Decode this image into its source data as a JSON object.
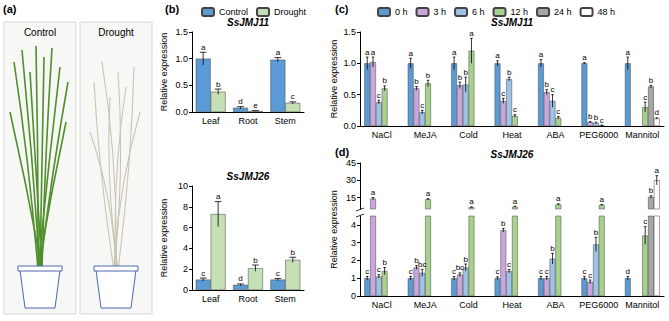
{
  "photos": {
    "panel": "(a)",
    "captions": [
      "Control",
      "Drought"
    ]
  },
  "chart_data": [
    {
      "panel": "(b)",
      "type": "bar",
      "title": "SsJMJ11",
      "y_label": "Relative expression",
      "categories": [
        "Leaf",
        "Root",
        "Stem"
      ],
      "series": [
        {
          "name": "Control",
          "color": "#5b9bd5",
          "values": [
            1.0,
            0.08,
            0.98
          ],
          "errors": [
            0.12,
            0.02,
            0.04
          ],
          "letters": [
            "a",
            "d",
            "a"
          ]
        },
        {
          "name": "Drought",
          "color": "#c5e0b4",
          "values": [
            0.38,
            0.02,
            0.17
          ],
          "errors": [
            0.05,
            0.005,
            0.02
          ],
          "letters": [
            "b",
            "e",
            "c"
          ]
        }
      ],
      "ylim": [
        0,
        1.5
      ],
      "yticks": [
        {
          "value": 0,
          "label": "0.0"
        },
        0.5,
        {
          "value": 1,
          "label": "1.0"
        },
        1.5
      ],
      "grid": false,
      "legend": "top"
    },
    {
      "type": "bar",
      "title": "SsJMJ26",
      "y_label": "Relative expression",
      "categories": [
        "Leaf",
        "Root",
        "Stem"
      ],
      "series": [
        {
          "name": "Control",
          "color": "#5b9bd5",
          "values": [
            1.0,
            0.5,
            1.0
          ],
          "errors": [
            0.15,
            0.08,
            0.1
          ],
          "letters": [
            "c",
            "d",
            "c"
          ]
        },
        {
          "name": "Drought",
          "color": "#c5e0b4",
          "values": [
            7.3,
            2.1,
            2.9
          ],
          "errors": [
            1.2,
            0.3,
            0.25
          ],
          "letters": [
            "a",
            "b",
            "b"
          ]
        }
      ],
      "ylim": [
        0,
        10
      ],
      "yticks": [
        0,
        2,
        4,
        6,
        8,
        10
      ],
      "grid": false
    },
    {
      "panel": "(c)",
      "type": "bar",
      "title": "SsJMJ11",
      "y_label": "Relative expression",
      "categories": [
        "NaCl",
        "MeJA",
        "Cold",
        "Heat",
        "ABA",
        "PEG6000",
        "Mannitol"
      ],
      "series": [
        {
          "name": "0 h",
          "color": "#5b9bd5",
          "values": [
            1,
            1,
            1,
            1,
            1,
            1,
            1
          ],
          "errors": [
            0.1,
            0.08,
            0.1,
            0.04,
            0.06,
            0.01,
            0.1
          ],
          "letters": [
            "a",
            "a",
            "a",
            "a",
            "a",
            "a",
            "a"
          ]
        },
        {
          "name": "3 h",
          "color": "#c9a7dd",
          "values": [
            1.02,
            0.6,
            0.65,
            0.4,
            0.54,
            0.06,
            null
          ],
          "errors": [
            0.08,
            0.03,
            0.05,
            0.04,
            0.04,
            0.01,
            null
          ],
          "letters": [
            "a",
            "b",
            "b",
            "c",
            "b",
            "b",
            null
          ]
        },
        {
          "name": "6 h",
          "color": "#9dc3e6",
          "values": [
            0.38,
            0.22,
            0.66,
            0.75,
            0.4,
            0.05,
            null
          ],
          "errors": [
            0.03,
            0.03,
            0.12,
            0.03,
            0.1,
            0.01,
            null
          ],
          "letters": [
            "c",
            "c",
            "b",
            "b",
            "c",
            "b",
            null
          ]
        },
        {
          "name": "12 h",
          "color": "#a9d18e",
          "values": [
            0.6,
            0.68,
            1.2,
            0.16,
            0.13,
            0.01,
            0.3
          ],
          "errors": [
            0.04,
            0.05,
            0.2,
            0.02,
            0.02,
            0.005,
            0.08
          ],
          "letters": [
            "b",
            "b",
            "a",
            "c",
            "c",
            "c",
            "c"
          ]
        },
        {
          "name": "24 h",
          "color": "#a6a6a6",
          "values": [
            null,
            null,
            null,
            null,
            null,
            null,
            0.63
          ],
          "errors": [
            null,
            null,
            null,
            null,
            null,
            null,
            0.02
          ],
          "letters": [
            null,
            null,
            null,
            null,
            null,
            null,
            "b"
          ]
        },
        {
          "name": "48 h",
          "color": "#ffffff",
          "values": [
            null,
            null,
            null,
            null,
            null,
            null,
            0.12
          ],
          "errors": [
            null,
            null,
            null,
            null,
            null,
            null,
            0.01
          ],
          "letters": [
            null,
            null,
            null,
            null,
            null,
            null,
            "d"
          ]
        }
      ],
      "ylim": [
        0,
        1.5
      ],
      "yticks": [
        {
          "value": 0,
          "label": "0.0"
        },
        0.5,
        {
          "value": 1,
          "label": "1.0"
        },
        1.5
      ],
      "grid": false,
      "legend": "top"
    },
    {
      "panel": "(d)",
      "type": "bar",
      "title": "SsJMJ26",
      "y_label": "Relative expression",
      "categories": [
        "NaCl",
        "MeJA",
        "Cold",
        "Heat",
        "ABA",
        "PEG6000",
        "Mannitol"
      ],
      "series": [
        {
          "name": "0 h",
          "color": "#5b9bd5",
          "values": [
            1,
            1,
            1,
            1,
            1,
            1,
            1
          ],
          "errors": [
            0.1,
            0.1,
            0.1,
            0.08,
            0.1,
            0.1,
            0.1
          ],
          "letters": [
            "c",
            "c",
            "c",
            "c",
            "c",
            "c",
            "d"
          ]
        },
        {
          "name": "3 h",
          "color": "#c9a7dd",
          "values": [
            14,
            1.6,
            1.2,
            3.7,
            1.0,
            0.8,
            null
          ],
          "errors": [
            1,
            0.1,
            0.1,
            0.1,
            0.1,
            0.1,
            null
          ],
          "letters": [
            "a",
            "b",
            "bc",
            "b",
            "c",
            "c",
            null
          ]
        },
        {
          "name": "6 h",
          "color": "#9dc3e6",
          "values": [
            1.1,
            1.3,
            1.6,
            1.4,
            2.1,
            2.9,
            null
          ],
          "errors": [
            0.1,
            0.2,
            0.2,
            0.1,
            0.3,
            0.4,
            null
          ],
          "letters": [
            "c",
            "bc",
            "b",
            "c",
            "b",
            "b",
            null
          ]
        },
        {
          "name": "12 h",
          "color": "#a9d18e",
          "values": [
            1.4,
            13.5,
            6.5,
            7,
            9,
            8.5,
            3.4
          ],
          "errors": [
            0.2,
            0.5,
            0.3,
            0.4,
            0.5,
            0.4,
            0.5
          ],
          "letters": [
            "b",
            "a",
            "a",
            "a",
            "a",
            "a",
            "c"
          ]
        },
        {
          "name": "24 h",
          "color": "#a6a6a6",
          "values": [
            null,
            null,
            null,
            null,
            null,
            null,
            15.5
          ],
          "errors": [
            null,
            null,
            null,
            null,
            null,
            null,
            1
          ],
          "letters": [
            null,
            null,
            null,
            null,
            null,
            null,
            "b"
          ]
        },
        {
          "name": "48 h",
          "color": "#ffffff",
          "values": [
            null,
            null,
            null,
            null,
            null,
            null,
            30
          ],
          "errors": [
            null,
            null,
            null,
            null,
            null,
            null,
            4
          ],
          "letters": [
            null,
            null,
            null,
            null,
            null,
            null,
            "a"
          ]
        }
      ],
      "ylim": [
        0,
        45
      ],
      "y_break": [
        4.5,
        5
      ],
      "yticks": [
        0,
        1,
        2,
        3,
        4,
        15,
        30,
        45
      ],
      "grid": false
    }
  ]
}
